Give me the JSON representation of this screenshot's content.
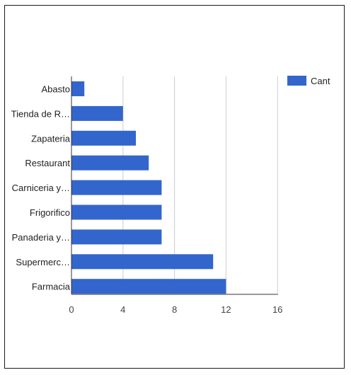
{
  "chart_data": {
    "type": "bar",
    "orientation": "horizontal",
    "categories": [
      "Abasto",
      "Tienda de R…",
      "Zapateria",
      "Restaurant",
      "Carniceria y…",
      "Frigorifico",
      "Panaderia y…",
      "Supermerc…",
      "Farmacia"
    ],
    "series": [
      {
        "name": "Cant",
        "values": [
          1,
          4,
          5,
          6,
          7,
          7,
          7,
          11,
          12
        ],
        "color": "#3366cc"
      }
    ],
    "xlim": [
      0,
      16
    ],
    "xticks": [
      "0",
      "4",
      "8",
      "12",
      "16"
    ],
    "title": "",
    "xlabel": "",
    "ylabel": "",
    "grid": true,
    "legend_position": "top-right"
  }
}
